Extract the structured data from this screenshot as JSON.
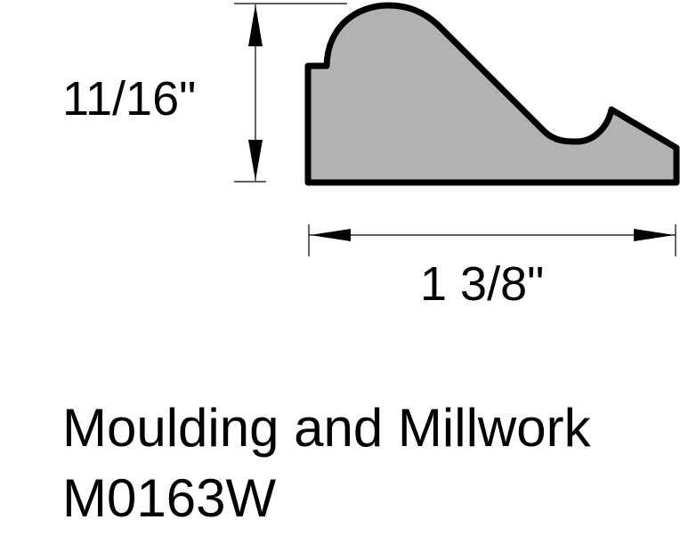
{
  "dimensions": {
    "height_label": "11/16\"",
    "width_label": "1 3/8\""
  },
  "title": {
    "line1": "Moulding and Millwork",
    "line2": "M0163W"
  },
  "colors": {
    "profile_fill": "#b2b2b2",
    "outline": "#000000"
  }
}
